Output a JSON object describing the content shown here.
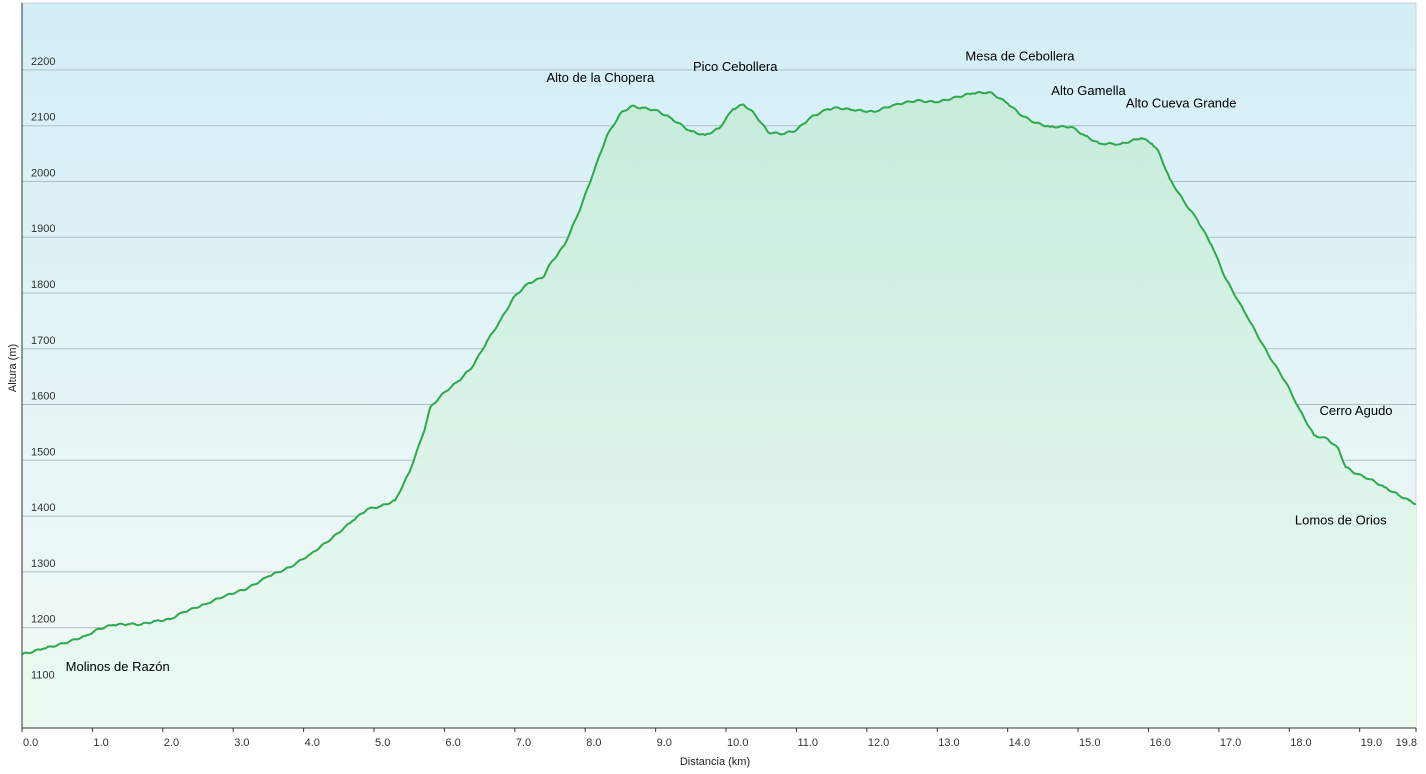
{
  "chart_data": {
    "type": "area",
    "title": "",
    "xlabel": "Distancia  (km)",
    "ylabel": "Altura (m)",
    "xlim": [
      0,
      19.8
    ],
    "ylim": [
      1020,
      2320
    ],
    "grid": true,
    "x_ticks": [
      "0.0",
      "1.0",
      "2.0",
      "3.0",
      "4.0",
      "5.0",
      "6.0",
      "7.0",
      "8.0",
      "9.0",
      "10.0",
      "11.0",
      "12.0",
      "13.0",
      "14.0",
      "15.0",
      "16.0",
      "17.0",
      "18.0",
      "19.0",
      "19.8"
    ],
    "y_ticks": [
      "1100",
      "1200",
      "1300",
      "1400",
      "1500",
      "1600",
      "1700",
      "1800",
      "1900",
      "2000",
      "2100",
      "2200"
    ],
    "line_color": "#2fa84f",
    "fill_color_top": "#c6ecda",
    "fill_color_bottom": "#ecfbf2",
    "bg_color_top": "#d3eef7",
    "bg_color_bottom": "#f3faf5",
    "profile": [
      [
        0.0,
        1152
      ],
      [
        0.3,
        1162
      ],
      [
        0.6,
        1172
      ],
      [
        0.9,
        1185
      ],
      [
        1.1,
        1198
      ],
      [
        1.3,
        1205
      ],
      [
        1.5,
        1206
      ],
      [
        1.7,
        1206
      ],
      [
        1.9,
        1212
      ],
      [
        2.1,
        1215
      ],
      [
        2.3,
        1228
      ],
      [
        2.6,
        1242
      ],
      [
        2.9,
        1258
      ],
      [
        3.2,
        1270
      ],
      [
        3.5,
        1292
      ],
      [
        3.8,
        1308
      ],
      [
        4.1,
        1332
      ],
      [
        4.4,
        1360
      ],
      [
        4.7,
        1392
      ],
      [
        4.9,
        1412
      ],
      [
        5.1,
        1418
      ],
      [
        5.3,
        1428
      ],
      [
        5.5,
        1478
      ],
      [
        5.7,
        1548
      ],
      [
        5.8,
        1595
      ],
      [
        6.0,
        1622
      ],
      [
        6.2,
        1642
      ],
      [
        6.4,
        1668
      ],
      [
        6.6,
        1712
      ],
      [
        6.8,
        1752
      ],
      [
        7.0,
        1795
      ],
      [
        7.2,
        1818
      ],
      [
        7.4,
        1828
      ],
      [
        7.5,
        1852
      ],
      [
        7.7,
        1885
      ],
      [
        7.9,
        1942
      ],
      [
        8.1,
        2010
      ],
      [
        8.3,
        2080
      ],
      [
        8.5,
        2122
      ],
      [
        8.65,
        2135
      ],
      [
        8.8,
        2132
      ],
      [
        9.0,
        2128
      ],
      [
        9.2,
        2115
      ],
      [
        9.4,
        2098
      ],
      [
        9.5,
        2090
      ],
      [
        9.7,
        2083
      ],
      [
        9.9,
        2095
      ],
      [
        10.1,
        2130
      ],
      [
        10.25,
        2138
      ],
      [
        10.4,
        2122
      ],
      [
        10.6,
        2088
      ],
      [
        10.8,
        2085
      ],
      [
        11.0,
        2092
      ],
      [
        11.2,
        2115
      ],
      [
        11.45,
        2130
      ],
      [
        11.6,
        2132
      ],
      [
        11.8,
        2128
      ],
      [
        12.1,
        2125
      ],
      [
        12.4,
        2138
      ],
      [
        12.7,
        2145
      ],
      [
        13.0,
        2142
      ],
      [
        13.3,
        2152
      ],
      [
        13.5,
        2158
      ],
      [
        13.75,
        2160
      ],
      [
        14.0,
        2140
      ],
      [
        14.2,
        2118
      ],
      [
        14.4,
        2105
      ],
      [
        14.6,
        2098
      ],
      [
        14.9,
        2098
      ],
      [
        15.1,
        2082
      ],
      [
        15.3,
        2068
      ],
      [
        15.6,
        2067
      ],
      [
        15.9,
        2078
      ],
      [
        16.05,
        2068
      ],
      [
        16.15,
        2052
      ],
      [
        16.3,
        2005
      ],
      [
        16.5,
        1965
      ],
      [
        16.7,
        1930
      ],
      [
        16.9,
        1885
      ],
      [
        17.1,
        1825
      ],
      [
        17.4,
        1758
      ],
      [
        17.7,
        1690
      ],
      [
        17.95,
        1640
      ],
      [
        18.15,
        1590
      ],
      [
        18.35,
        1545
      ],
      [
        18.55,
        1538
      ],
      [
        18.7,
        1520
      ],
      [
        18.8,
        1488
      ],
      [
        18.95,
        1476
      ],
      [
        19.15,
        1466
      ],
      [
        19.35,
        1452
      ],
      [
        19.55,
        1438
      ],
      [
        19.7,
        1428
      ],
      [
        19.8,
        1422
      ]
    ],
    "annotations": [
      {
        "text": "Molinos de Razón",
        "x": 0.62,
        "y": 1122
      },
      {
        "text": "Alto de la Chopera",
        "x": 7.45,
        "y": 2178
      },
      {
        "text": "Pico Cebollera",
        "x": 9.53,
        "y": 2198
      },
      {
        "text": "Mesa de Cebollera",
        "x": 13.4,
        "y": 2217
      },
      {
        "text": "Alto Gamella",
        "x": 14.62,
        "y": 2155
      },
      {
        "text": "Alto Cueva Grande",
        "x": 15.68,
        "y": 2133
      },
      {
        "text": "Cerro Agudo",
        "x": 18.43,
        "y": 1581
      },
      {
        "text": "Lomos de Orios",
        "x": 18.08,
        "y": 1385
      }
    ]
  }
}
